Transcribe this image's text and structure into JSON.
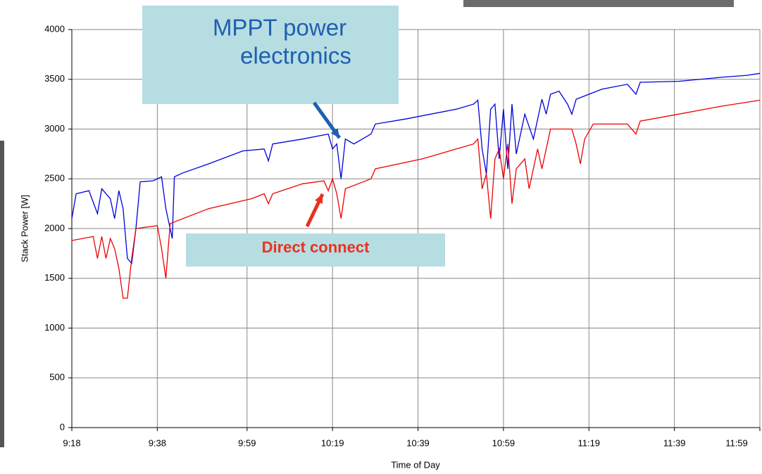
{
  "chart_data": {
    "type": "line",
    "xlabel": "Time of Day",
    "ylabel": "Stack Power [W]",
    "annotations": [
      {
        "lines": [
          "MPPT power",
          "electronics"
        ],
        "color": "#1f5fb0"
      },
      {
        "lines": [
          "Direct connect"
        ],
        "color": "#e8321e"
      }
    ],
    "xlim": [
      558,
      719
    ],
    "xticks": [
      {
        "value": 558,
        "label": "9:18"
      },
      {
        "value": 578,
        "label": "9:38"
      },
      {
        "value": 599,
        "label": "9:59"
      },
      {
        "value": 619,
        "label": "10:19"
      },
      {
        "value": 639,
        "label": "10:39"
      },
      {
        "value": 659,
        "label": "10:59"
      },
      {
        "value": 679,
        "label": "11:19"
      },
      {
        "value": 699,
        "label": "11:39"
      },
      {
        "value": 719,
        "label": "11:59"
      }
    ],
    "ylim": [
      0,
      4000
    ],
    "yticks": [
      0,
      500,
      1000,
      1500,
      2000,
      2500,
      3000,
      3500,
      4000
    ],
    "grid": true,
    "series": [
      {
        "color": "#0000dd",
        "x": [
          558,
          559,
          562,
          564,
          565,
          567,
          568,
          569,
          570,
          571,
          572,
          573,
          574,
          577,
          579,
          580,
          581,
          581.5,
          582,
          584,
          590,
          598,
          603,
          604,
          605,
          612,
          618,
          619,
          620,
          621,
          622,
          624,
          628,
          629,
          636,
          648,
          652,
          653,
          654,
          655,
          656,
          657,
          658,
          659,
          660,
          661,
          662,
          664,
          666,
          668,
          669,
          670,
          672,
          674,
          675,
          676,
          679,
          682,
          688,
          690,
          691,
          700,
          710,
          716,
          719
        ],
        "values": [
          2100,
          2350,
          2380,
          2150,
          2400,
          2300,
          2100,
          2380,
          2200,
          1700,
          1650,
          2000,
          2470,
          2480,
          2520,
          2200,
          2000,
          1900,
          2520,
          2560,
          2650,
          2780,
          2800,
          2680,
          2850,
          2900,
          2950,
          2800,
          2850,
          2500,
          2900,
          2850,
          2950,
          3050,
          3100,
          3200,
          3250,
          3290,
          2800,
          2550,
          3200,
          3250,
          2700,
          3200,
          2600,
          3250,
          2750,
          3150,
          2900,
          3300,
          3150,
          3350,
          3380,
          3250,
          3150,
          3300,
          3350,
          3400,
          3450,
          3350,
          3470,
          3480,
          3520,
          3540,
          3560
        ]
      },
      {
        "color": "#ee0000",
        "x": [
          558,
          563,
          564,
          565,
          566,
          567,
          568,
          569,
          570,
          571,
          572,
          573,
          578,
          579,
          580,
          581,
          590,
          600,
          603,
          604,
          605,
          612,
          617,
          618,
          619,
          620,
          621,
          622,
          625,
          628,
          629,
          640,
          652,
          653,
          654,
          655,
          656,
          657,
          658,
          659,
          660,
          661,
          662,
          664,
          665,
          667,
          668,
          670,
          675,
          676,
          677,
          678,
          680,
          688,
          690,
          691,
          700,
          710,
          719
        ],
        "values": [
          1880,
          1920,
          1700,
          1920,
          1700,
          1900,
          1800,
          1600,
          1300,
          1300,
          1700,
          2000,
          2030,
          1800,
          1500,
          2050,
          2200,
          2300,
          2350,
          2250,
          2350,
          2450,
          2480,
          2380,
          2500,
          2350,
          2100,
          2400,
          2450,
          2500,
          2600,
          2700,
          2850,
          2900,
          2400,
          2550,
          2100,
          2700,
          2800,
          2500,
          2850,
          2250,
          2600,
          2700,
          2400,
          2800,
          2600,
          3000,
          3000,
          2850,
          2650,
          2900,
          3050,
          3050,
          2950,
          3080,
          3150,
          3230,
          3290
        ]
      }
    ]
  }
}
